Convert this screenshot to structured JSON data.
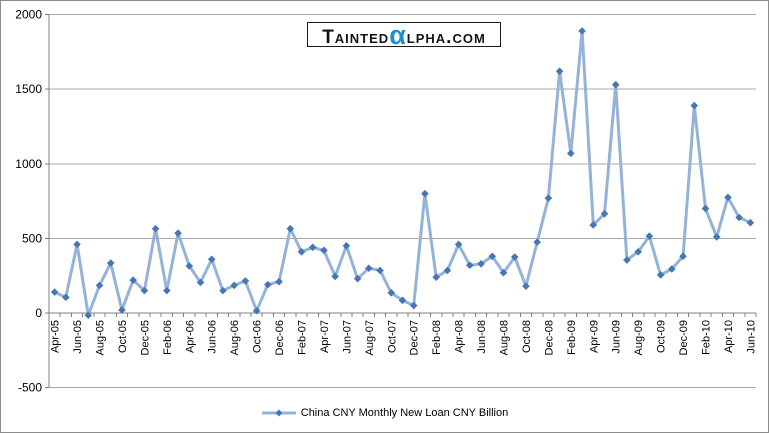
{
  "chart_data": {
    "type": "line",
    "title": "",
    "xlabel": "",
    "ylabel": "",
    "ylim": [
      -500,
      2000
    ],
    "yticks": [
      2000,
      1500,
      1000,
      500,
      0,
      -500
    ],
    "xtick_every": 2,
    "grid": true,
    "legend_position": "bottom",
    "categories": [
      "Apr-05",
      "May-05",
      "Jun-05",
      "Jul-05",
      "Aug-05",
      "Sep-05",
      "Oct-05",
      "Nov-05",
      "Dec-05",
      "Jan-06",
      "Feb-06",
      "Mar-06",
      "Apr-06",
      "May-06",
      "Jun-06",
      "Jul-06",
      "Aug-06",
      "Sep-06",
      "Oct-06",
      "Nov-06",
      "Dec-06",
      "Jan-07",
      "Feb-07",
      "Mar-07",
      "Apr-07",
      "May-07",
      "Jun-07",
      "Jul-07",
      "Aug-07",
      "Sep-07",
      "Oct-07",
      "Nov-07",
      "Dec-07",
      "Jan-08",
      "Feb-08",
      "Mar-08",
      "Apr-08",
      "May-08",
      "Jun-08",
      "Jul-08",
      "Aug-08",
      "Sep-08",
      "Oct-08",
      "Nov-08",
      "Dec-08",
      "Jan-09",
      "Feb-09",
      "Mar-09",
      "Apr-09",
      "May-09",
      "Jun-09",
      "Jul-09",
      "Aug-09",
      "Sep-09",
      "Oct-09",
      "Nov-09",
      "Dec-09",
      "Jan-10",
      "Feb-10",
      "Mar-10",
      "Apr-10",
      "May-10",
      "Jun-10"
    ],
    "series": [
      {
        "name": "China CNY Monthly New Loan CNY Billion",
        "values": [
          140,
          105,
          460,
          -15,
          185,
          335,
          20,
          220,
          150,
          565,
          150,
          535,
          315,
          205,
          360,
          150,
          185,
          215,
          15,
          190,
          210,
          565,
          410,
          440,
          420,
          245,
          450,
          230,
          300,
          285,
          135,
          85,
          50,
          800,
          240,
          285,
          460,
          320,
          330,
          380,
          270,
          375,
          180,
          475,
          770,
          1620,
          1070,
          1890,
          590,
          665,
          1530,
          355,
          410,
          515,
          255,
          295,
          380,
          1390,
          700,
          510,
          775,
          640,
          605
        ]
      }
    ],
    "colors": {
      "line": "#95b3d7",
      "marker": "#4576b5",
      "gridline": "#a9a9a9",
      "axis": "#808080",
      "text": "#000000"
    },
    "marker": "diamond"
  },
  "logo": {
    "part1": "Tainted",
    "alpha": "α",
    "part2": "lpha.com",
    "alpha_color": "#1f8ecd"
  },
  "legend": {
    "label": "China CNY Monthly New Loan CNY Billion"
  }
}
